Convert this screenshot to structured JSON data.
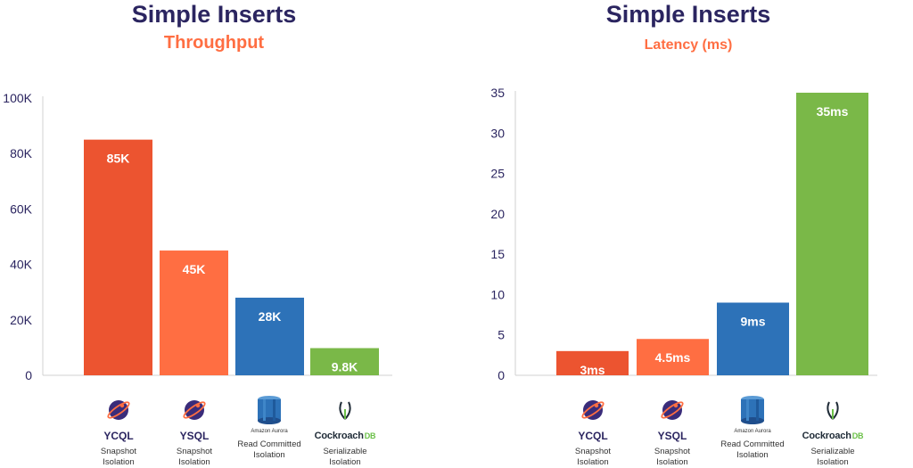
{
  "chart_data": [
    {
      "type": "bar",
      "title": "Simple Inserts",
      "subtitle": "Throughput",
      "categories": [
        "YCQL",
        "YSQL",
        "Amazon Aurora",
        "CockroachDB"
      ],
      "category_descriptions": [
        [
          "Snapshot",
          "Isolation"
        ],
        [
          "Snapshot",
          "Isolation"
        ],
        [
          "Read Committed",
          "Isolation"
        ],
        [
          "Serializable",
          "Isolation"
        ]
      ],
      "values": [
        85000,
        45000,
        28000,
        9800
      ],
      "data_labels": [
        "85K",
        "45K",
        "28K",
        "9.8K"
      ],
      "ylim": [
        0,
        100000
      ],
      "yticks": [
        0,
        20000,
        40000,
        60000,
        80000,
        100000
      ],
      "ytick_labels": [
        "0",
        "20K",
        "40K",
        "60K",
        "80K",
        "100K"
      ],
      "colors": [
        "#ec5430",
        "#ff6e42",
        "#2d72b8",
        "#7ab848"
      ],
      "grid": false
    },
    {
      "type": "bar",
      "title": "Simple Inserts",
      "subtitle": "Latency (ms)",
      "categories": [
        "YCQL",
        "YSQL",
        "Amazon Aurora",
        "CockroachDB"
      ],
      "category_descriptions": [
        [
          "Snapshot",
          "Isolation"
        ],
        [
          "Snapshot",
          "Isolation"
        ],
        [
          "Read Committed",
          "Isolation"
        ],
        [
          "Serializable",
          "Isolation"
        ]
      ],
      "values": [
        3,
        4.5,
        9,
        35
      ],
      "data_labels": [
        "3ms",
        "4.5ms",
        "9ms",
        "35ms"
      ],
      "ylim": [
        0,
        35
      ],
      "yticks": [
        0,
        5,
        10,
        15,
        20,
        25,
        30,
        35
      ],
      "ytick_labels": [
        "0",
        "5",
        "10",
        "15",
        "20",
        "25",
        "30",
        "35"
      ],
      "colors": [
        "#ec5430",
        "#ff6e42",
        "#2d72b8",
        "#7ab848"
      ],
      "grid": false
    }
  ],
  "logos": {
    "ycql": {
      "name": "YCQL",
      "icon": "yugabyte-logo-icon"
    },
    "ysql": {
      "name": "YSQL",
      "icon": "yugabyte-logo-icon"
    },
    "aurora": {
      "name": "Amazon Aurora",
      "icon": "amazon-aurora-logo-icon"
    },
    "cockroach": {
      "name_main": "Cockroach",
      "name_db": "DB",
      "icon": "cockroachdb-logo-icon"
    }
  }
}
